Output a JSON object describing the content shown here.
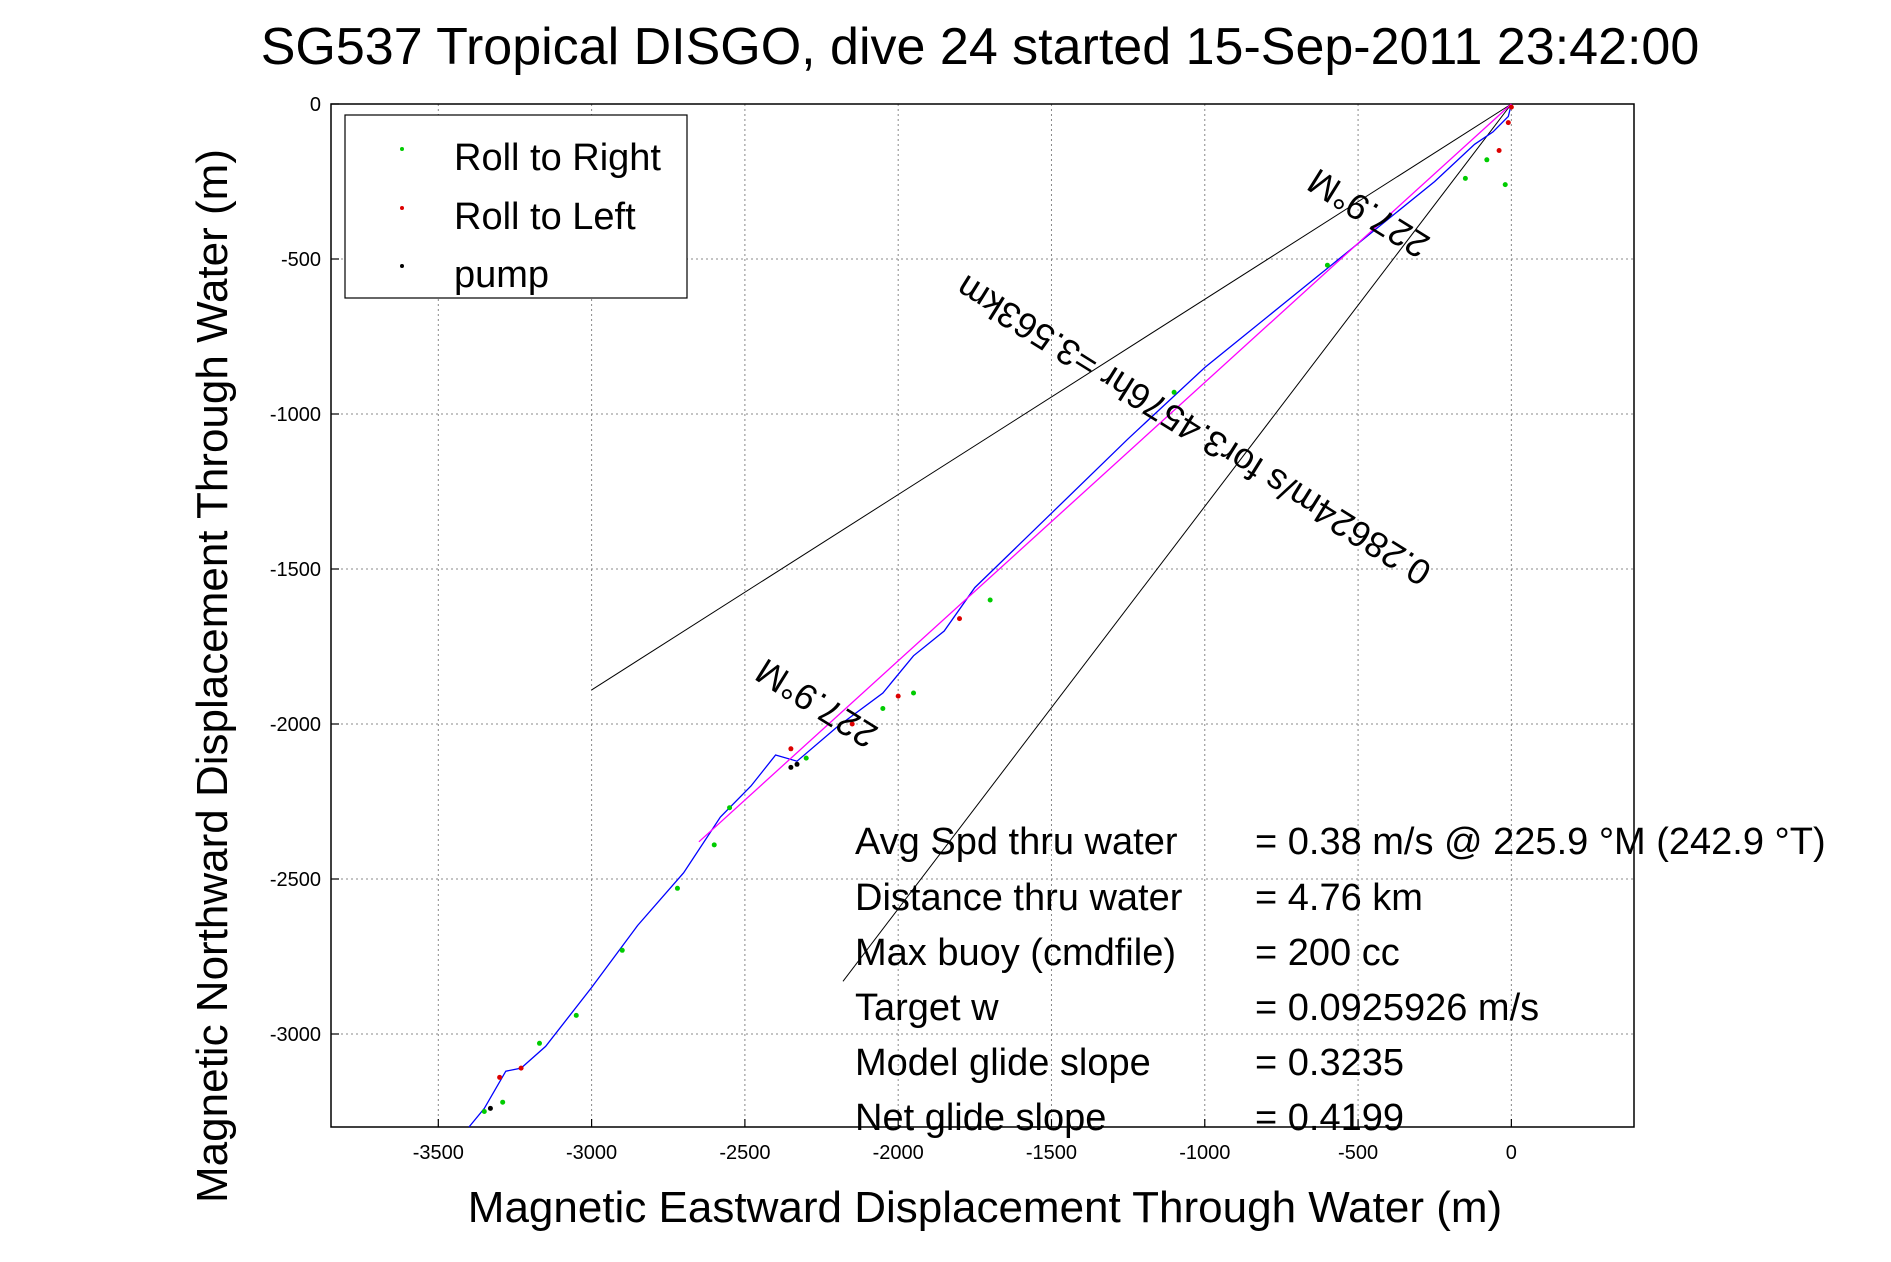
{
  "chart_data": {
    "type": "line",
    "title": "SG537 Tropical DISGO, dive 24 started 15-Sep-2011 23:42:00",
    "xlabel": "Magnetic Eastward Displacement Through Water (m)",
    "ylabel": "Magnetic Northward Displacement Through Water (m)",
    "xlim": [
      -3850,
      400
    ],
    "ylim": [
      -3300,
      0
    ],
    "grid": true,
    "x_ticks": [
      "-3500",
      "-3000",
      "-2500",
      "-2000",
      "-1500",
      "-1000",
      "-500",
      "0"
    ],
    "y_ticks": [
      "0",
      "-500",
      "-1000",
      "-1500",
      "-2000",
      "-2500",
      "-3000"
    ],
    "legend_position": "top-left",
    "legend": [
      {
        "label": "Roll to Right",
        "color": "#00cc00"
      },
      {
        "label": "Roll to Left",
        "color": "#dd0000"
      },
      {
        "label": "pump",
        "color": "#000000"
      }
    ],
    "series": [
      {
        "name": "track",
        "color": "#0000ff",
        "points": [
          [
            0,
            0
          ],
          [
            -10,
            -40
          ],
          [
            -60,
            -90
          ],
          [
            -120,
            -130
          ],
          [
            -250,
            -250
          ],
          [
            -500,
            -450
          ],
          [
            -750,
            -650
          ],
          [
            -1000,
            -850
          ],
          [
            -1250,
            -1080
          ],
          [
            -1500,
            -1320
          ],
          [
            -1750,
            -1560
          ],
          [
            -1850,
            -1700
          ],
          [
            -1950,
            -1780
          ],
          [
            -2050,
            -1900
          ],
          [
            -2200,
            -2010
          ],
          [
            -2330,
            -2120
          ],
          [
            -2400,
            -2100
          ],
          [
            -2480,
            -2200
          ],
          [
            -2580,
            -2300
          ],
          [
            -2700,
            -2480
          ],
          [
            -2850,
            -2650
          ],
          [
            -3000,
            -2850
          ],
          [
            -3150,
            -3040
          ],
          [
            -3230,
            -3110
          ],
          [
            -3280,
            -3120
          ],
          [
            -3350,
            -3240
          ],
          [
            -3400,
            -3300
          ]
        ]
      },
      {
        "name": "",
        "color": "#ff00ff",
        "points": [
          [
            0,
            0
          ],
          [
            -2650,
            -2380
          ]
        ]
      }
    ],
    "rays": [
      {
        "heading_label": "227.9°M",
        "points": [
          [
            0,
            0
          ],
          [
            -3000,
            -1890
          ]
        ]
      },
      {
        "heading_label": "227.9°M",
        "points": [
          [
            0,
            0
          ],
          [
            -2180,
            -2830
          ]
        ]
      }
    ],
    "roll_right_points": [
      [
        -20,
        -260
      ],
      [
        -80,
        -180
      ],
      [
        -150,
        -240
      ],
      [
        -600,
        -520
      ],
      [
        -1100,
        -930
      ],
      [
        -1700,
        -1600
      ],
      [
        -1950,
        -1900
      ],
      [
        -2050,
        -1950
      ],
      [
        -2300,
        -2110
      ],
      [
        -2550,
        -2270
      ],
      [
        -2600,
        -2390
      ],
      [
        -2720,
        -2530
      ],
      [
        -2900,
        -2730
      ],
      [
        -3050,
        -2940
      ],
      [
        -3170,
        -3030
      ],
      [
        -3290,
        -3220
      ],
      [
        -3350,
        -3250
      ]
    ],
    "roll_left_points": [
      [
        0,
        -10
      ],
      [
        -10,
        -60
      ],
      [
        -40,
        -150
      ],
      [
        -1800,
        -1660
      ],
      [
        -2000,
        -1910
      ],
      [
        -2150,
        -2000
      ],
      [
        -2350,
        -2080
      ],
      [
        -3230,
        -3110
      ],
      [
        -3300,
        -3140
      ]
    ],
    "pump_points": [
      [
        -2330,
        -2130
      ],
      [
        -2350,
        -2140
      ],
      [
        -3330,
        -3240
      ]
    ],
    "annotations": {
      "rotated_top": "227.9°M",
      "rotated_middle": "0.28624m/s for3.4576hr =3.563km",
      "rotated_bottom": "227.9°M"
    },
    "stats": [
      {
        "label": "Avg Spd thru water",
        "value": "=  0.38 m/s @ 225.9 °M (242.9 °T)"
      },
      {
        "label": "Distance thru water",
        "value": "=  4.76 km"
      },
      {
        "label": "Max buoy (cmdfile)",
        "value": "= 200 cc"
      },
      {
        "label": "Target w",
        "value": "= 0.0925926 m/s"
      },
      {
        "label": "Model glide slope",
        "value": "= 0.3235"
      },
      {
        "label": "Net glide slope",
        "value": "= 0.4199"
      }
    ]
  }
}
